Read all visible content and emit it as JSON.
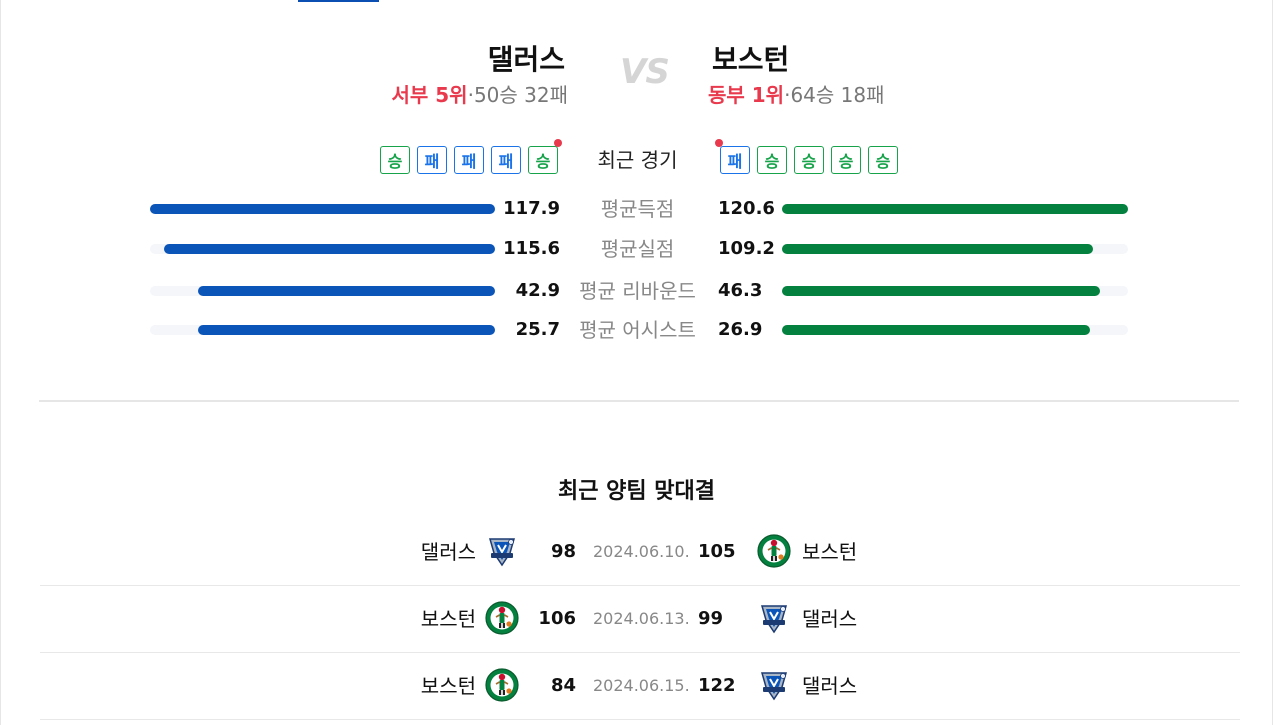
{
  "teams": {
    "left": {
      "name": "댈러스",
      "rank": "서부 5위",
      "record": "50승 32패"
    },
    "right": {
      "name": "보스턴",
      "rank": "동부 1위",
      "record": "64승 18패"
    },
    "vs_label": "VS"
  },
  "recent_form": {
    "title": "최근 경기",
    "left": [
      "승",
      "패",
      "패",
      "패",
      "승"
    ],
    "right": [
      "패",
      "승",
      "승",
      "승",
      "승"
    ]
  },
  "stats": [
    {
      "label": "평균득점",
      "left": "117.9",
      "right": "120.6",
      "left_fill": 1.0,
      "right_fill": 1.0
    },
    {
      "label": "평균실점",
      "left": "115.6",
      "right": "109.2",
      "left_fill": 0.96,
      "right_fill": 0.9
    },
    {
      "label": "평균 리바운드",
      "left": "42.9",
      "right": "46.3",
      "left_fill": 0.86,
      "right_fill": 0.92
    },
    {
      "label": "평균 어시스트",
      "left": "25.7",
      "right": "26.9",
      "left_fill": 0.86,
      "right_fill": 0.89
    }
  ],
  "head_to_head": {
    "title": "최근 양팀 맞대결",
    "matches": [
      {
        "home": "댈러스",
        "home_logo": "mavericks-logo",
        "home_score": "98",
        "date": "2024.06.10.",
        "away_score": "105",
        "away": "보스턴",
        "away_logo": "celtics-logo"
      },
      {
        "home": "보스턴",
        "home_logo": "celtics-logo",
        "home_score": "106",
        "date": "2024.06.13.",
        "away_score": "99",
        "away": "댈러스",
        "away_logo": "mavericks-logo"
      },
      {
        "home": "보스턴",
        "home_logo": "celtics-logo",
        "home_score": "84",
        "date": "2024.06.15.",
        "away_score": "122",
        "away": "댈러스",
        "away_logo": "mavericks-logo"
      }
    ]
  },
  "colors": {
    "rank": "#e8394d",
    "win": "#17a34a",
    "loss": "#1a73e8",
    "left_bar": "#0b55b8",
    "right_bar": "#04803f"
  }
}
